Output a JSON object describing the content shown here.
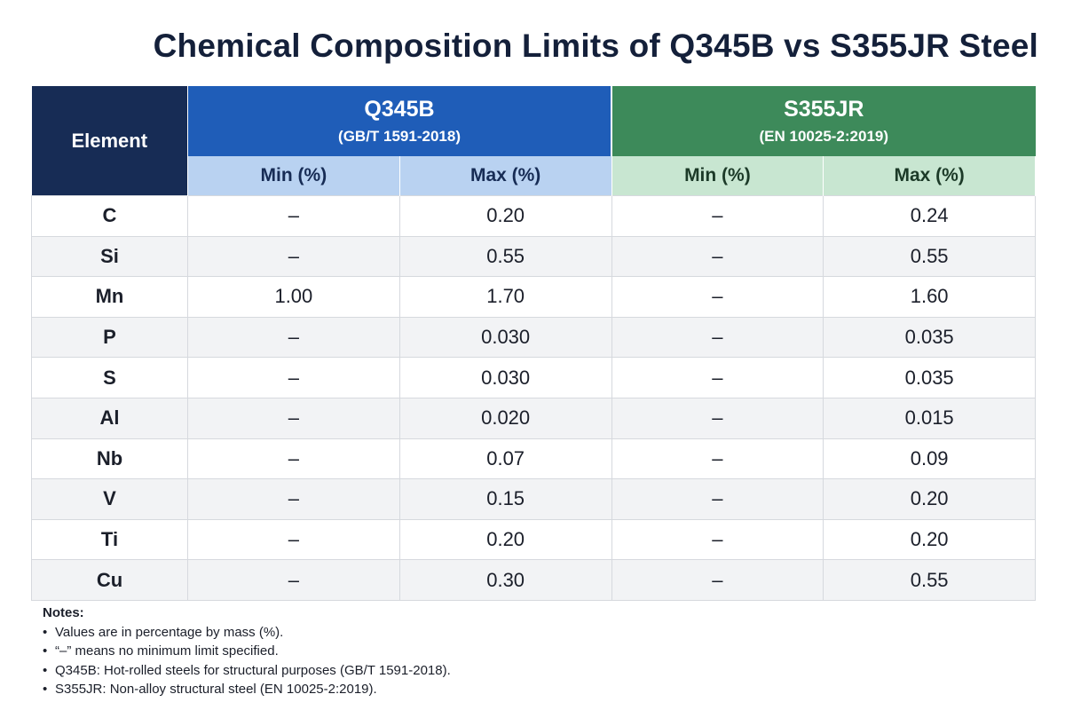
{
  "title": "Chemical Composition Limits of Q345B vs S355JR Steel",
  "table": {
    "element_header": "Element",
    "grades": [
      {
        "name": "Q345B",
        "standard": "(GB/T 1591-2018)",
        "color": "#1f5db8"
      },
      {
        "name": "S355JR",
        "standard": "(EN 10025-2:2019)",
        "color": "#3d8a5a"
      }
    ],
    "sub_headers": [
      "Min (%)",
      "Max (%)",
      "Min (%)",
      "Max (%)"
    ],
    "rows": [
      {
        "element": "C",
        "q_min": "–",
        "q_max": "0.20",
        "s_min": "–",
        "s_max": "0.24"
      },
      {
        "element": "Si",
        "q_min": "–",
        "q_max": "0.55",
        "s_min": "–",
        "s_max": "0.55"
      },
      {
        "element": "Mn",
        "q_min": "1.00",
        "q_max": "1.70",
        "s_min": "–",
        "s_max": "1.60"
      },
      {
        "element": "P",
        "q_min": "–",
        "q_max": "0.030",
        "s_min": "–",
        "s_max": "0.035"
      },
      {
        "element": "S",
        "q_min": "–",
        "q_max": "0.030",
        "s_min": "–",
        "s_max": "0.035"
      },
      {
        "element": "Al",
        "q_min": "–",
        "q_max": "0.020",
        "s_min": "–",
        "s_max": "0.015"
      },
      {
        "element": "Nb",
        "q_min": "–",
        "q_max": "0.07",
        "s_min": "–",
        "s_max": "0.09"
      },
      {
        "element": "V",
        "q_min": "–",
        "q_max": "0.15",
        "s_min": "–",
        "s_max": "0.20"
      },
      {
        "element": "Ti",
        "q_min": "–",
        "q_max": "0.20",
        "s_min": "–",
        "s_max": "0.20"
      },
      {
        "element": "Cu",
        "q_min": "–",
        "q_max": "0.30",
        "s_min": "–",
        "s_max": "0.55"
      }
    ]
  },
  "notes": {
    "title": "Notes:",
    "items": [
      "Values are in percentage by mass (%).",
      "“–” means no minimum limit specified.",
      "Q345B: Hot-rolled steels for structural purposes (GB/T 1591-2018).",
      "S355JR: Non-alloy structural steel (EN 10025-2:2019)."
    ]
  }
}
